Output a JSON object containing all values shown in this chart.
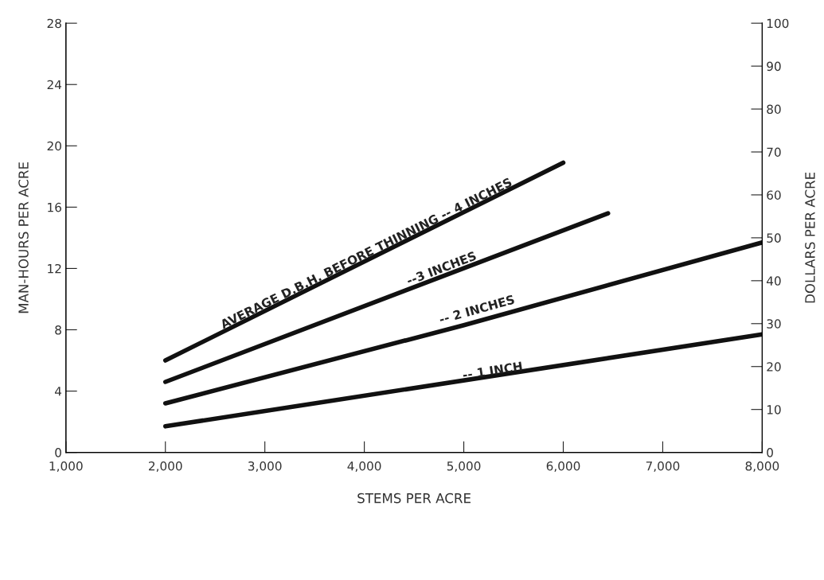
{
  "chart_data": {
    "type": "line",
    "xlabel": "STEMS PER ACRE",
    "ylabel": "MAN-HOURS PER ACRE",
    "y2label": "DOLLARS PER ACRE",
    "xlim": [
      1000,
      8000
    ],
    "xticks": [
      {
        "value": 1000,
        "label": "1,000"
      },
      {
        "value": 2000,
        "label": "2,000"
      },
      {
        "value": 3000,
        "label": "3,000"
      },
      {
        "value": 4000,
        "label": "4,000"
      },
      {
        "value": 5000,
        "label": "5,000"
      },
      {
        "value": 6000,
        "label": "6,000"
      },
      {
        "value": 7000,
        "label": "7,000"
      },
      {
        "value": 8000,
        "label": "8,000"
      }
    ],
    "ylim": [
      0,
      28
    ],
    "yticks": [
      0,
      4,
      8,
      12,
      16,
      20,
      24,
      28
    ],
    "y2lim": [
      0,
      100
    ],
    "y2ticks": [
      0,
      10,
      20,
      30,
      40,
      50,
      60,
      70,
      80,
      90,
      100
    ],
    "series": [
      {
        "color": "#111111",
        "x": [
          2000,
          6000
        ],
        "values": [
          6.0,
          18.9
        ]
      },
      {
        "color": "#111111",
        "x": [
          2000,
          6450
        ],
        "values": [
          4.6,
          15.6
        ]
      },
      {
        "color": "#111111",
        "x": [
          2000,
          5000,
          8000
        ],
        "values": [
          3.2,
          8.3,
          13.7
        ]
      },
      {
        "color": "#111111",
        "x": [
          2000,
          8000
        ],
        "values": [
          1.7,
          7.7
        ]
      }
    ],
    "annotations": [
      {
        "text": "AVERAGE D.B.H. BEFORE THINNING -- 4 INCHES",
        "x": 4050,
        "y": 12.6
      },
      {
        "text": "--3 INCHES",
        "x": 4800,
        "y": 11.6
      },
      {
        "text": "-- 2 INCHES",
        "x": 5150,
        "y": 8.9
      },
      {
        "text": "-- 1 INCH",
        "x": 5300,
        "y": 4.9
      }
    ],
    "grid": false,
    "legend": false,
    "marker": "none",
    "line_style": "solid"
  }
}
